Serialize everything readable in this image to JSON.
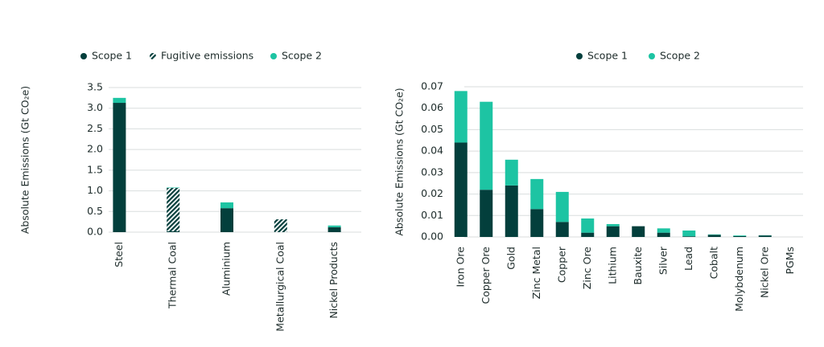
{
  "chart_data": [
    {
      "type": "stacked-bar",
      "y_label": "Absolute Emissions (Gt CO₂e)",
      "categories": [
        "Steel",
        "Thermal Coal",
        "Aluminium",
        "Metallurgical Coal",
        "Nickel Products"
      ],
      "series": [
        {
          "name": "Scope 1",
          "color": "#033f3c",
          "values": [
            3.13,
            0.02,
            0.58,
            0,
            0.12
          ]
        },
        {
          "name": "Fugitive emissions",
          "color": "#033f3c",
          "hatch": true,
          "values": [
            0,
            1.05,
            0,
            0.31,
            0
          ]
        },
        {
          "name": "Scope 2",
          "color": "#1dc4a3",
          "values": [
            0.12,
            0.01,
            0.14,
            0,
            0.04
          ]
        }
      ],
      "ylim": [
        0,
        3.5
      ],
      "yticks": [
        {
          "value": 0,
          "label": "0.0"
        },
        0.5,
        {
          "value": 1,
          "label": "1.0"
        },
        1.5,
        {
          "value": 2,
          "label": "2.0"
        },
        2.5,
        {
          "value": 3,
          "label": "3.0"
        },
        3.5
      ],
      "grid": true
    },
    {
      "type": "stacked-bar",
      "y_label": "Absolute Emissions (Gt CO₂e)",
      "categories": [
        "Iron Ore",
        "Copper Ore",
        "Gold",
        "Zinc Metal",
        "Copper",
        "Zinc Ore",
        "Lithium",
        "Bauxite",
        "Silver",
        "Lead",
        "Cobalt",
        "Molybdenum",
        "Nickel Ore",
        "PGMs"
      ],
      "series": [
        {
          "name": "Scope 1",
          "color": "#033f3c",
          "values": [
            0.044,
            0.022,
            0.024,
            0.013,
            0.007,
            0.002,
            0.005,
            0.005,
            0.002,
            0.0003,
            0.001,
            0.0004,
            0.0007,
            0
          ]
        },
        {
          "name": "Scope 2",
          "color": "#1dc4a3",
          "values": [
            0.024,
            0.041,
            0.012,
            0.014,
            0.014,
            0.0066,
            0.001,
            0,
            0.002,
            0.0027,
            0.0002,
            0.0003,
            0.0001,
            0
          ]
        }
      ],
      "ylim": [
        0,
        0.07
      ],
      "yticks": [
        {
          "value": 0,
          "label": "0.00"
        },
        0.01,
        0.02,
        0.03,
        0.04,
        0.05,
        0.06,
        0.07
      ],
      "grid": true
    }
  ]
}
